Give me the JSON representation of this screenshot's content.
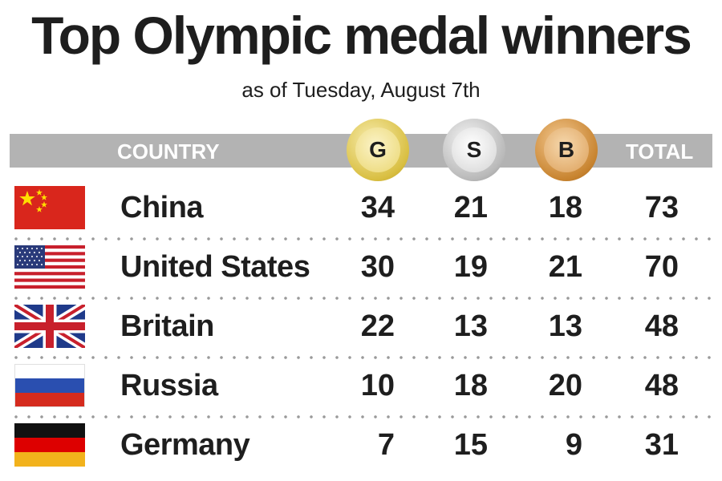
{
  "title": "Top Olympic medal winners",
  "subtitle": "as of Tuesday, August 7th",
  "header": {
    "country": "COUNTRY",
    "gold": "G",
    "silver": "S",
    "bronze": "B",
    "total": "TOTAL"
  },
  "colors": {
    "header_bar": "#b3b3b3",
    "gold_medal": "#e7d36a",
    "silver_medal": "#c9c9c9",
    "bronze_medal": "#d89a48",
    "text": "#1e1e1e"
  },
  "chart_data": {
    "type": "table",
    "columns": [
      "COUNTRY",
      "G",
      "S",
      "B",
      "TOTAL"
    ],
    "rows": [
      {
        "country": "China",
        "flag": "china-flag",
        "gold": "34",
        "silver": "21",
        "bronze": "18",
        "total": "73"
      },
      {
        "country": "United States",
        "flag": "usa-flag",
        "gold": "30",
        "silver": "19",
        "bronze": "21",
        "total": "70"
      },
      {
        "country": "Britain",
        "flag": "uk-flag",
        "gold": "22",
        "silver": "13",
        "bronze": "13",
        "total": "48"
      },
      {
        "country": "Russia",
        "flag": "russia-flag",
        "gold": "10",
        "silver": "18",
        "bronze": "20",
        "total": "48"
      },
      {
        "country": "Germany",
        "flag": "germany-flag",
        "gold": "7",
        "silver": "15",
        "bronze": "9",
        "total": "31"
      }
    ]
  }
}
